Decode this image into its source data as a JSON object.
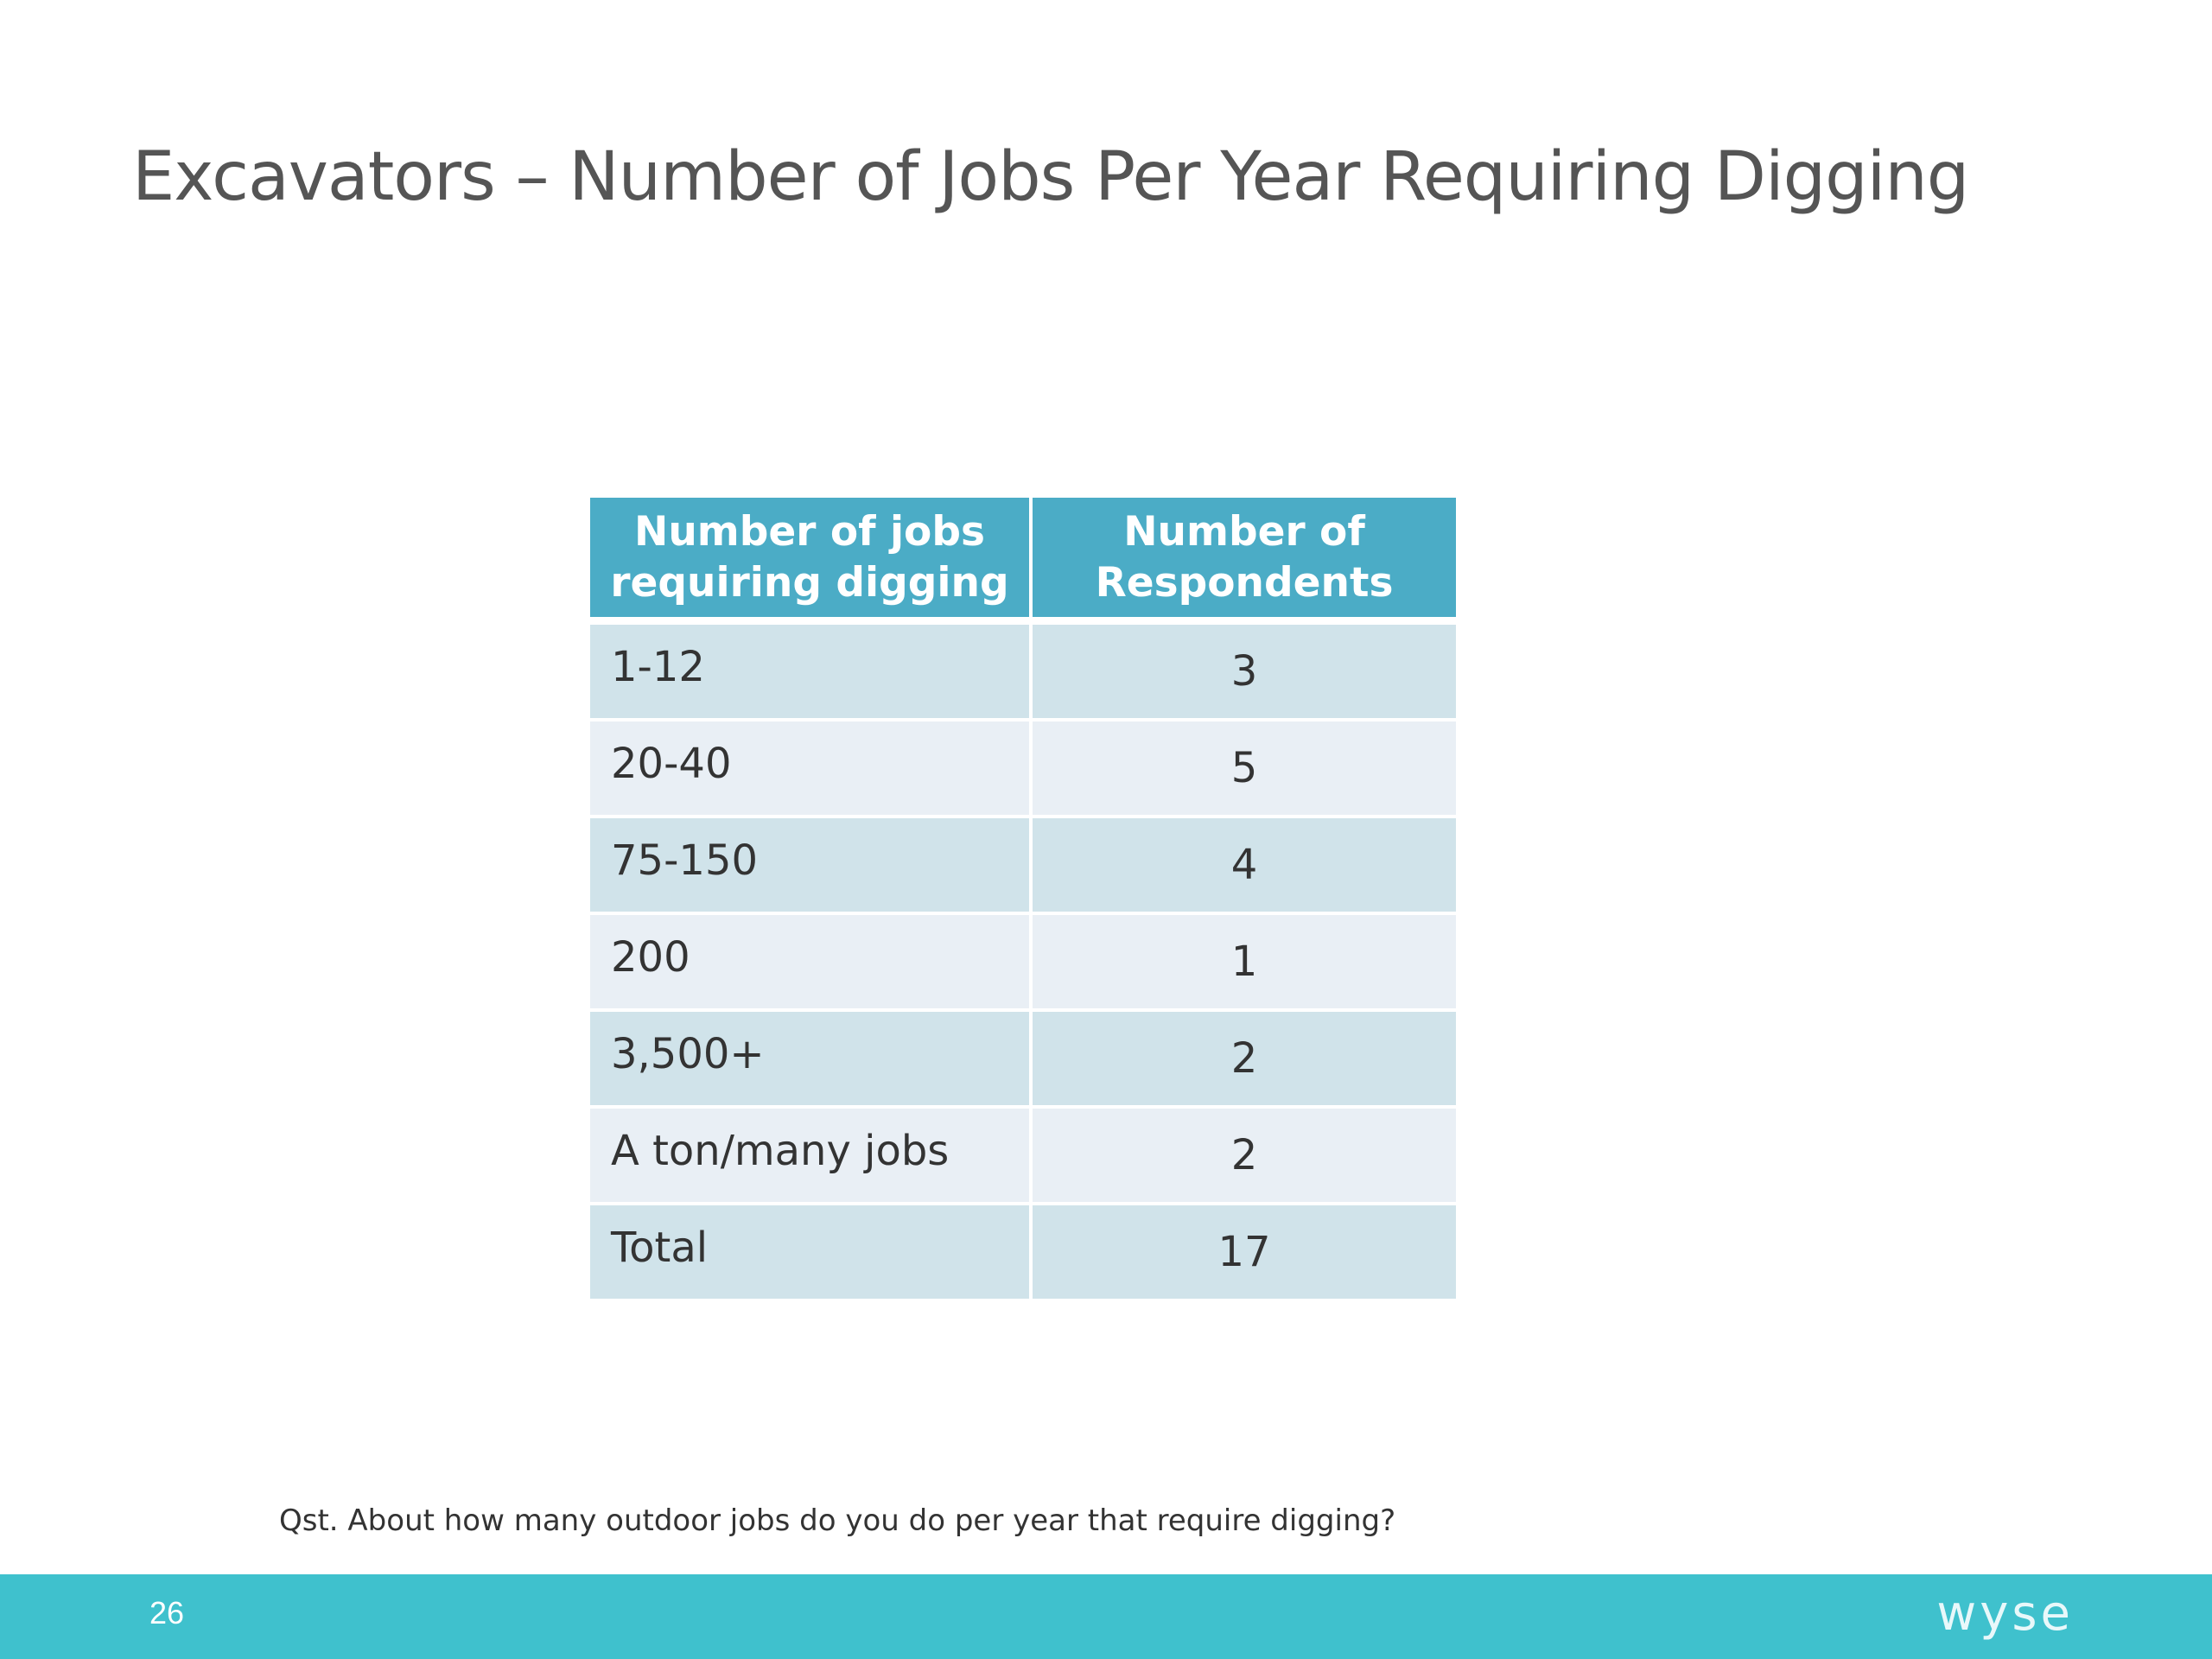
{
  "slide": {
    "title": "Excavators – Number of Jobs Per Year Requiring Digging",
    "footnote": "Qst. About how many outdoor jobs do you do per year that require digging?",
    "page_number": "26",
    "brand": "wyse"
  },
  "table": {
    "headers": [
      "Number of jobs requiring digging",
      "Number of Respondents"
    ],
    "rows": [
      {
        "label": "1-12",
        "value": "3"
      },
      {
        "label": "20-40",
        "value": "5"
      },
      {
        "label": "75-150",
        "value": "4"
      },
      {
        "label": "200",
        "value": "1"
      },
      {
        "label": "3,500+",
        "value": "2"
      },
      {
        "label": "A ton/many jobs",
        "value": "2"
      },
      {
        "label": "Total",
        "value": "17"
      }
    ]
  },
  "colors": {
    "header_bg": "#4bacc6",
    "row_dark": "#d0e3ea",
    "row_light": "#e9eff5",
    "footer_bar": "#3fc1cd",
    "title_text": "#555555"
  }
}
